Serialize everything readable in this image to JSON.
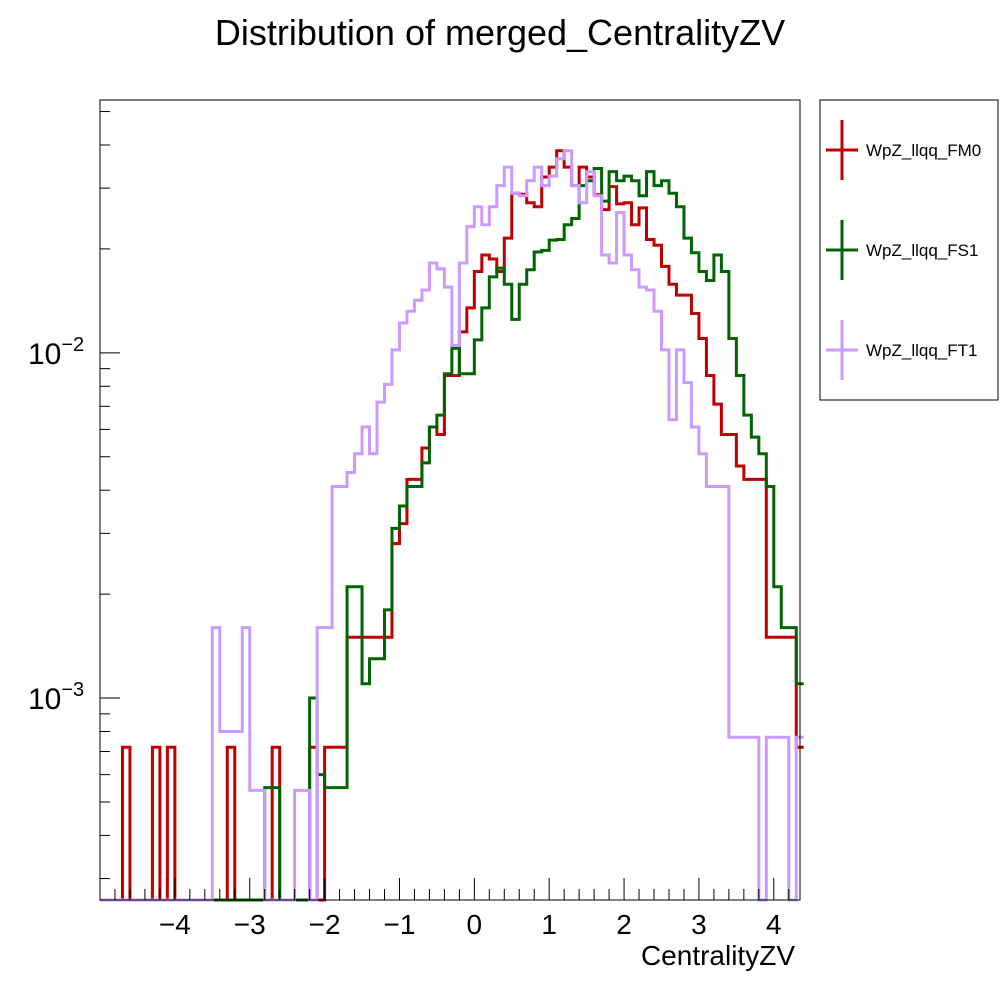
{
  "chart_data": {
    "type": "step-histogram",
    "title": "Distribution of merged_CentralityZV",
    "xlabel": "CentralityZV",
    "ylabel": "",
    "xlim": [
      -5.0,
      4.35
    ],
    "ylim": [
      0.00026,
      0.054
    ],
    "yscale": "log",
    "x_ticks": [
      -4,
      -3,
      -2,
      -1,
      0,
      1,
      2,
      3,
      4
    ],
    "x_tick_labels": [
      "−4",
      "−3",
      "−2",
      "−1",
      "0",
      "1",
      "2",
      "3",
      "4"
    ],
    "y_tick_labels": [
      {
        "value": 0.01,
        "base": "10",
        "exponent": "−2"
      },
      {
        "value": 0.001,
        "base": "10",
        "exponent": "−3"
      }
    ],
    "bin_edges": {
      "start": -5.0,
      "width": 0.1,
      "count": 94
    },
    "grid": false,
    "legend_position": "right",
    "series": [
      {
        "name": "WpZ_llqq_FM0",
        "color": "#c00000",
        "values": [
          0,
          0,
          0,
          0.00072,
          0,
          0,
          0,
          0.00072,
          0,
          0.00072,
          0,
          0,
          0,
          0,
          0,
          0,
          0,
          0.00072,
          0,
          0,
          0,
          0,
          0,
          0.00072,
          0,
          0,
          0,
          0,
          0.00072,
          0,
          0.00072,
          0.00072,
          0.00072,
          0.0015,
          0.0015,
          0.0015,
          0.0015,
          0.0015,
          0.0015,
          0.0028,
          0.0032,
          0.0043,
          0.0043,
          0.0053,
          0.0061,
          0.0058,
          0.0086,
          0.0086,
          0.0115,
          0.0135,
          0.0172,
          0.0192,
          0.0187,
          0.0172,
          0.0215,
          0.029,
          0.0288,
          0.0272,
          0.0265,
          0.0323,
          0.0345,
          0.0385,
          0.0345,
          0.0305,
          0.0345,
          0.0323,
          0.0287,
          0.026,
          0.0303,
          0.027,
          0.0272,
          0.0235,
          0.0263,
          0.0213,
          0.0205,
          0.0178,
          0.0158,
          0.0147,
          0.0147,
          0.013,
          0.011,
          0.0086,
          0.0071,
          0.0058,
          0.0058,
          0.0047,
          0.0043,
          0.0043,
          0.0043,
          0.0015,
          0.0015,
          0.0015,
          0.0015,
          0.00072
        ]
      },
      {
        "name": "WpZ_llqq_FS1",
        "color": "#006400",
        "values": [
          0,
          0,
          0,
          0,
          0,
          0,
          0,
          0,
          0,
          0,
          0,
          0,
          0,
          0,
          0,
          0,
          0,
          0,
          0,
          0,
          0,
          0,
          0.00055,
          0.00055,
          0,
          0,
          0,
          0,
          0.001,
          0.0006,
          0.00055,
          0.00055,
          0.00055,
          0.0021,
          0.0021,
          0.0011,
          0.0013,
          0.0013,
          0.0018,
          0.0031,
          0.0036,
          0.0041,
          0.0041,
          0.0048,
          0.0061,
          0.0066,
          0.0087,
          0.0103,
          0.0087,
          0.0087,
          0.0109,
          0.0135,
          0.0166,
          0.0176,
          0.0158,
          0.0125,
          0.0158,
          0.0174,
          0.0196,
          0.0198,
          0.0212,
          0.0213,
          0.0235,
          0.0245,
          0.0305,
          0.0315,
          0.0342,
          0.0275,
          0.0335,
          0.0315,
          0.0325,
          0.0315,
          0.0285,
          0.0335,
          0.0305,
          0.0315,
          0.029,
          0.0265,
          0.0215,
          0.0195,
          0.0172,
          0.0162,
          0.0192,
          0.0172,
          0.011,
          0.0086,
          0.0066,
          0.0057,
          0.0051,
          0.0041,
          0.0021,
          0.0016,
          0.0016,
          0.0011
        ]
      },
      {
        "name": "WpZ_llqq_FT1",
        "color": "#cc99ff",
        "values": [
          0,
          0,
          0,
          0,
          0,
          0,
          0,
          0,
          0,
          0,
          0,
          0,
          0,
          0,
          0,
          0.0016,
          0.0008,
          0.0008,
          0.0008,
          0.0016,
          0.00054,
          0.00054,
          0,
          0,
          0,
          0,
          0.00054,
          0.00054,
          0,
          0.0016,
          0.0016,
          0.0041,
          0.0041,
          0.0045,
          0.0051,
          0.0061,
          0.0051,
          0.0072,
          0.0081,
          0.0102,
          0.0122,
          0.0132,
          0.0142,
          0.0152,
          0.0182,
          0.0175,
          0.0155,
          0.0105,
          0.0182,
          0.0232,
          0.0265,
          0.0235,
          0.0265,
          0.0305,
          0.0345,
          0.029,
          0.0285,
          0.0315,
          0.0345,
          0.0305,
          0.0325,
          0.0365,
          0.0385,
          0.0305,
          0.0272,
          0.0335,
          0.0285,
          0.0192,
          0.0182,
          0.0255,
          0.0192,
          0.0174,
          0.0155,
          0.0152,
          0.0132,
          0.0102,
          0.0064,
          0.0102,
          0.0082,
          0.0061,
          0.0051,
          0.0041,
          0.0041,
          0.0041,
          0.00077,
          0.00077,
          0.00077,
          0.00077,
          0,
          0.00077,
          0.00077,
          0.00077,
          0,
          0.00077
        ]
      }
    ]
  }
}
